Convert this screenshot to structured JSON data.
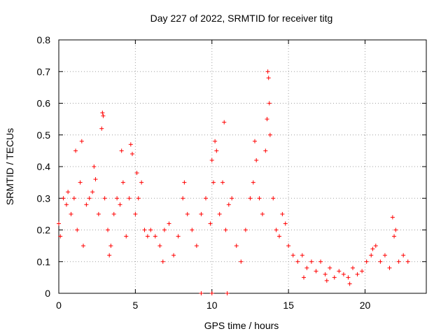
{
  "chart_data": {
    "type": "scatter",
    "title": "Day 227 of 2022, SRMTID for receiver titg",
    "xlabel": "GPS time / hours",
    "ylabel": "SRMTID / TECUs",
    "xlim": [
      0,
      24
    ],
    "ylim": [
      0,
      0.8
    ],
    "xticks": [
      0,
      5,
      10,
      15,
      20
    ],
    "xtick_labels": [
      "0",
      "5",
      "10",
      "15",
      "20"
    ],
    "yticks": [
      0,
      0.1,
      0.2,
      0.3,
      0.4,
      0.5,
      0.6,
      0.7,
      0.8
    ],
    "ytick_labels": [
      "0",
      "0.1",
      "0.2",
      "0.3",
      "0.4",
      "0.5",
      "0.6",
      "0.7",
      "0.8"
    ],
    "grid": true,
    "marker": "+",
    "color": "#ff0000",
    "series": [
      {
        "name": "SRMTID",
        "x": [
          0.0,
          0.3,
          0.5,
          0.8,
          1.0,
          1.2,
          1.4,
          1.6,
          1.8,
          2.0,
          2.2,
          2.4,
          2.6,
          2.8,
          2.9,
          3.0,
          3.2,
          3.4,
          3.6,
          3.8,
          4.0,
          4.2,
          4.4,
          4.6,
          4.8,
          5.0,
          5.2,
          5.4,
          5.6,
          5.8,
          6.0,
          6.3,
          6.6,
          6.9,
          7.2,
          7.5,
          7.8,
          8.1,
          8.4,
          8.7,
          9.0,
          9.3,
          9.6,
          9.9,
          10.1,
          10.3,
          10.5,
          10.7,
          10.9,
          11.1,
          11.3,
          11.6,
          11.9,
          12.2,
          12.5,
          12.7,
          12.9,
          13.1,
          13.3,
          13.5,
          13.6,
          13.7,
          13.8,
          14.0,
          14.2,
          14.4,
          14.6,
          14.8,
          15.0,
          15.3,
          15.6,
          15.9,
          16.2,
          16.5,
          16.8,
          17.1,
          17.4,
          17.7,
          18.0,
          18.3,
          18.6,
          18.9,
          19.2,
          19.5,
          19.8,
          20.1,
          20.4,
          20.7,
          21.0,
          21.3,
          21.6,
          21.9,
          22.2,
          22.5,
          22.8,
          0.1,
          0.6,
          1.1,
          1.5,
          2.3,
          2.85,
          3.3,
          4.1,
          4.7,
          5.1,
          6.8,
          8.2,
          10.0,
          10.2,
          10.8,
          12.8,
          13.65,
          13.75,
          16.0,
          17.5,
          19.0,
          20.5,
          21.8,
          22.0,
          9.3,
          10.0,
          11.0
        ],
        "y": [
          0.22,
          0.3,
          0.28,
          0.25,
          0.3,
          0.2,
          0.35,
          0.15,
          0.28,
          0.3,
          0.32,
          0.36,
          0.25,
          0.52,
          0.56,
          0.3,
          0.2,
          0.15,
          0.25,
          0.3,
          0.28,
          0.35,
          0.18,
          0.3,
          0.44,
          0.25,
          0.3,
          0.35,
          0.2,
          0.18,
          0.2,
          0.18,
          0.15,
          0.2,
          0.22,
          0.12,
          0.18,
          0.3,
          0.25,
          0.2,
          0.15,
          0.25,
          0.3,
          0.22,
          0.35,
          0.45,
          0.25,
          0.35,
          0.2,
          0.28,
          0.3,
          0.15,
          0.1,
          0.2,
          0.3,
          0.35,
          0.42,
          0.3,
          0.25,
          0.45,
          0.55,
          0.68,
          0.5,
          0.3,
          0.2,
          0.18,
          0.25,
          0.22,
          0.15,
          0.12,
          0.1,
          0.12,
          0.08,
          0.1,
          0.07,
          0.1,
          0.06,
          0.08,
          0.05,
          0.07,
          0.06,
          0.05,
          0.08,
          0.06,
          0.07,
          0.1,
          0.12,
          0.15,
          0.1,
          0.12,
          0.08,
          0.18,
          0.1,
          0.12,
          0.1,
          0.18,
          0.32,
          0.45,
          0.48,
          0.4,
          0.57,
          0.12,
          0.45,
          0.47,
          0.38,
          0.1,
          0.35,
          0.42,
          0.48,
          0.54,
          0.48,
          0.7,
          0.6,
          0.05,
          0.04,
          0.03,
          0.14,
          0.24,
          0.2,
          0.0,
          0.0,
          0.0
        ]
      }
    ]
  }
}
